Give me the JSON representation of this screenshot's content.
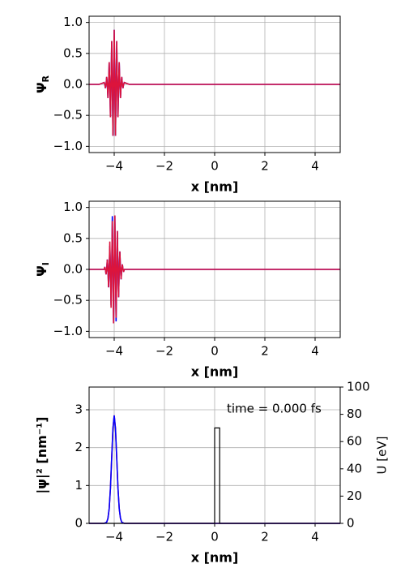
{
  "chart_data": [
    {
      "type": "line",
      "y_label": "Ψ",
      "y_label_sub": "R",
      "x_label": "x  [nm]",
      "x": [
        -5,
        -4.6,
        -4.4,
        -4.375,
        -4.35,
        -4.325,
        -4.3,
        -4.275,
        -4.25,
        -4.225,
        -4.2,
        -4.175,
        -4.15,
        -4.125,
        -4.1,
        -4.075,
        -4.05,
        -4.025,
        -4,
        -3.975,
        -3.95,
        -3.925,
        -3.9,
        -3.875,
        -3.85,
        -3.825,
        -3.8,
        -3.775,
        -3.75,
        -3.725,
        -3.7,
        -3.675,
        -3.65,
        -3.625,
        -3.6,
        -3.4,
        5
      ],
      "series": [
        {
          "color": "#0000ff",
          "values": [
            0,
            0,
            0.03,
            0,
            -0.06,
            0,
            0.12,
            0,
            -0.22,
            0,
            0.36,
            0,
            -0.53,
            0,
            0.7,
            0,
            -0.83,
            0,
            0.88,
            0,
            -0.83,
            0,
            0.7,
            0,
            -0.53,
            0,
            0.36,
            0,
            -0.22,
            0,
            0.12,
            0,
            -0.06,
            0,
            0.03,
            0,
            0
          ]
        },
        {
          "color": "#dc143c",
          "values": [
            0,
            0,
            0.03,
            0,
            -0.06,
            0,
            0.12,
            0,
            -0.22,
            0,
            0.36,
            0,
            -0.53,
            0,
            0.7,
            0,
            -0.83,
            0,
            0.88,
            0,
            -0.83,
            0,
            0.7,
            0,
            -0.53,
            0,
            0.36,
            0,
            -0.22,
            0,
            0.12,
            0,
            -0.06,
            0,
            0.03,
            0,
            0
          ]
        }
      ],
      "xlim": [
        -5,
        5
      ],
      "xticks": [
        {
          "value": -4,
          "label": "−4"
        },
        {
          "value": -2,
          "label": "−2"
        },
        0,
        2,
        4
      ],
      "ylim": [
        -1.1,
        1.1
      ],
      "yticks": [
        {
          "value": -1,
          "label": "−1.0"
        },
        {
          "value": -0.5,
          "label": "−0.5"
        },
        {
          "value": 0,
          "label": "0.0"
        },
        0.5,
        {
          "value": 1,
          "label": "1.0"
        }
      ],
      "grid": true
    },
    {
      "type": "line",
      "y_label": "Ψ",
      "y_label_sub": "I",
      "x_label": "x [nm]",
      "x": [
        -5,
        -4.6,
        -4.4,
        -4.375,
        -4.35,
        -4.325,
        -4.3,
        -4.275,
        -4.25,
        -4.225,
        -4.2,
        -4.175,
        -4.15,
        -4.125,
        -4.1,
        -4.075,
        -4.05,
        -4.025,
        -4,
        -3.975,
        -3.95,
        -3.925,
        -3.9,
        -3.875,
        -3.85,
        -3.825,
        -3.8,
        -3.775,
        -3.75,
        -3.725,
        -3.7,
        -3.675,
        -3.65,
        -3.625,
        -3.6,
        -3.4,
        5
      ],
      "series": [
        {
          "color": "#0000ff",
          "values": [
            0,
            0,
            0,
            0.04,
            0,
            -0.08,
            0,
            0.16,
            0,
            -0.29,
            0,
            0.38,
            0,
            -0.58,
            0,
            0.86,
            0,
            -0.87,
            0,
            0.87,
            0,
            -0.84,
            0,
            0.62,
            0,
            -0.45,
            0,
            0.29,
            0,
            -0.16,
            0,
            0.08,
            0,
            -0.04,
            0,
            0,
            0
          ]
        },
        {
          "color": "#dc143c",
          "values": [
            0,
            0,
            0,
            0.04,
            0,
            -0.08,
            0,
            0.16,
            0,
            -0.29,
            0,
            0.45,
            0,
            -0.62,
            0,
            0.78,
            0,
            -0.87,
            0,
            0.87,
            0,
            -0.78,
            0,
            0.62,
            0,
            -0.45,
            0,
            0.29,
            0,
            -0.16,
            0,
            0.08,
            0,
            -0.04,
            0,
            0,
            0
          ]
        }
      ],
      "xlim": [
        -5,
        5
      ],
      "xticks": [
        {
          "value": -4,
          "label": "−4"
        },
        {
          "value": -2,
          "label": "−2"
        },
        0,
        2,
        4
      ],
      "ylim": [
        -1.1,
        1.1
      ],
      "yticks": [
        {
          "value": -1,
          "label": "−1.0"
        },
        {
          "value": -0.5,
          "label": "−0.5"
        },
        {
          "value": 0,
          "label": "0.0"
        },
        0.5,
        {
          "value": 1,
          "label": "1.0"
        }
      ],
      "grid": true
    },
    {
      "type": "line",
      "y_label": "|ψ|²  [nm⁻¹]",
      "y2_label": "U  [eV]",
      "x_label": "x  [nm]",
      "annotation": "time = 0.000 fs",
      "x": [
        -5,
        -4.4,
        -4.3,
        -4.25,
        -4.2,
        -4.15,
        -4.1,
        -4.05,
        -4,
        -3.95,
        -3.9,
        -3.85,
        -3.8,
        -3.75,
        -3.7,
        -3.6,
        5
      ],
      "series": [
        {
          "color": "#dc143c",
          "values": [
            0,
            0,
            0.03,
            0.13,
            0.39,
            0.93,
            1.73,
            2.51,
            2.85,
            2.51,
            1.73,
            0.93,
            0.39,
            0.13,
            0.03,
            0,
            0
          ]
        },
        {
          "color": "#0000ff",
          "values": [
            0,
            0,
            0.03,
            0.13,
            0.39,
            0.93,
            1.73,
            2.51,
            2.85,
            2.51,
            1.73,
            0.93,
            0.39,
            0.13,
            0.03,
            0,
            0
          ]
        },
        {
          "color": "#000000",
          "axis": "y2",
          "x": [
            -5,
            0,
            0,
            0.2,
            0.2,
            5
          ],
          "values": [
            0,
            0,
            70,
            70,
            0,
            0
          ]
        }
      ],
      "xlim": [
        -5,
        5
      ],
      "xticks": [
        {
          "value": -4,
          "label": "−4"
        },
        {
          "value": -2,
          "label": "−2"
        },
        0,
        2,
        4
      ],
      "ylim": [
        0,
        3.6
      ],
      "yticks": [
        0,
        1,
        2,
        3
      ],
      "y2lim": [
        0,
        100
      ],
      "y2ticks": [
        0,
        20,
        40,
        60,
        80,
        100
      ],
      "grid": true
    }
  ]
}
